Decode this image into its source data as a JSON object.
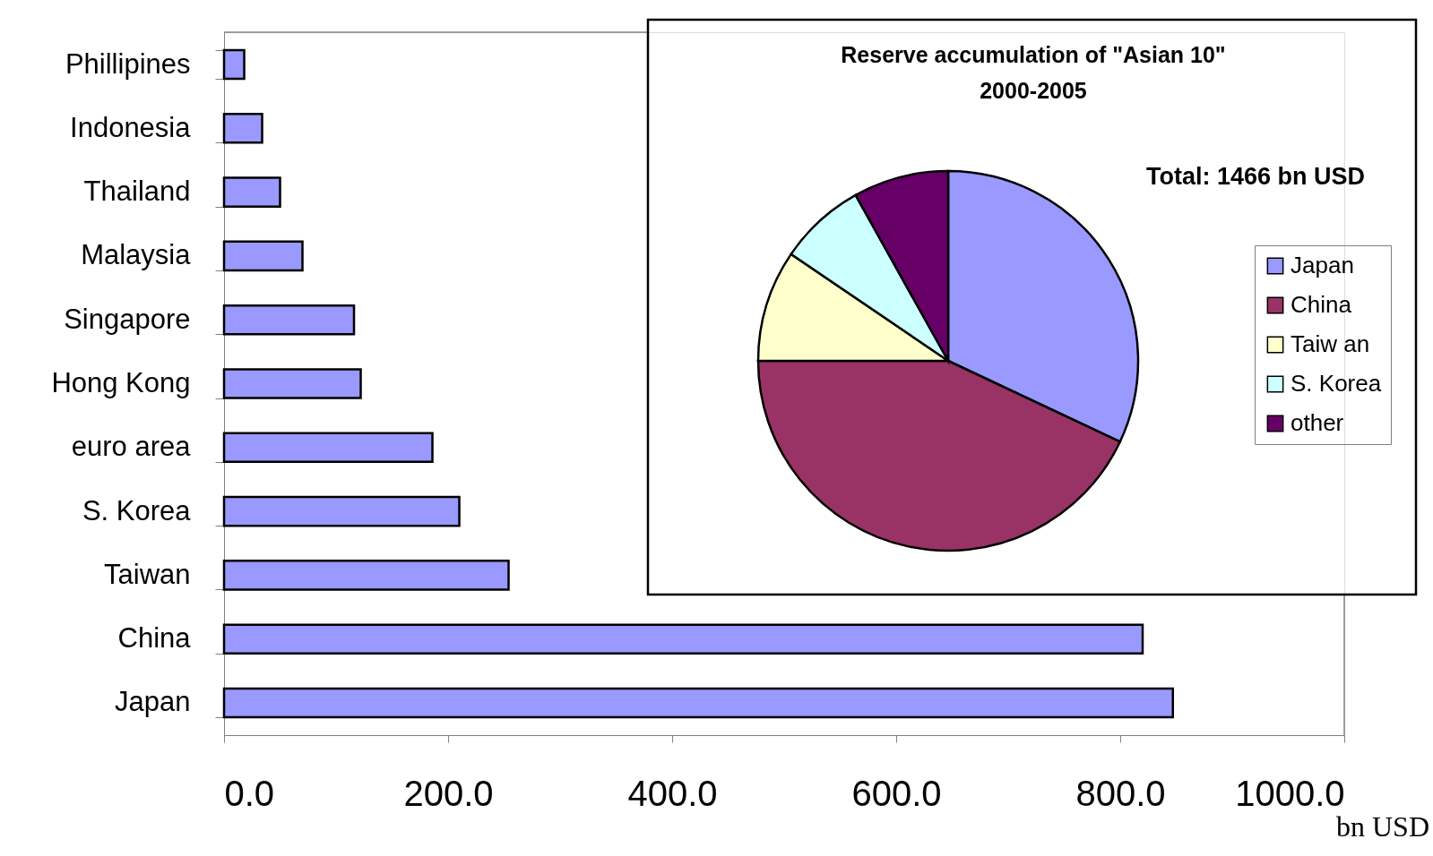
{
  "chart_data": [
    {
      "type": "bar",
      "orientation": "horizontal",
      "xlabel": "bn USD",
      "categories": [
        "Phillipines",
        "Indonesia",
        "Thailand",
        "Malaysia",
        "Singapore",
        "Hong Kong",
        "euro area",
        "S. Korea",
        "Taiwan",
        "China",
        "Japan"
      ],
      "values": [
        18,
        34,
        50,
        70,
        116,
        122,
        186,
        210,
        254,
        820,
        847
      ],
      "color": "#9999ff",
      "xlim": [
        0,
        1000
      ],
      "xticks": [
        {
          "value": 0,
          "label": "0.0"
        },
        {
          "value": 200,
          "label": "200.0"
        },
        {
          "value": 400,
          "label": "400.0"
        },
        {
          "value": 600,
          "label": "600.0"
        },
        {
          "value": 800,
          "label": "800.0"
        },
        {
          "value": 1000,
          "label": "1000.0"
        }
      ],
      "grid": false
    },
    {
      "type": "pie",
      "title": "Reserve accumulation of \"Asian 10\"",
      "subtitle": "2000-2005",
      "annotations": [
        "Total: 1466 bn USD"
      ],
      "categories": [
        "Japan",
        "China",
        "Taiw an",
        "S. Korea",
        "other"
      ],
      "values": [
        32.0,
        43.0,
        9.5,
        7.4,
        8.1
      ],
      "colors": [
        "#9999ff",
        "#993366",
        "#ffffcc",
        "#ccffff",
        "#660066"
      ],
      "legend": "right"
    }
  ]
}
